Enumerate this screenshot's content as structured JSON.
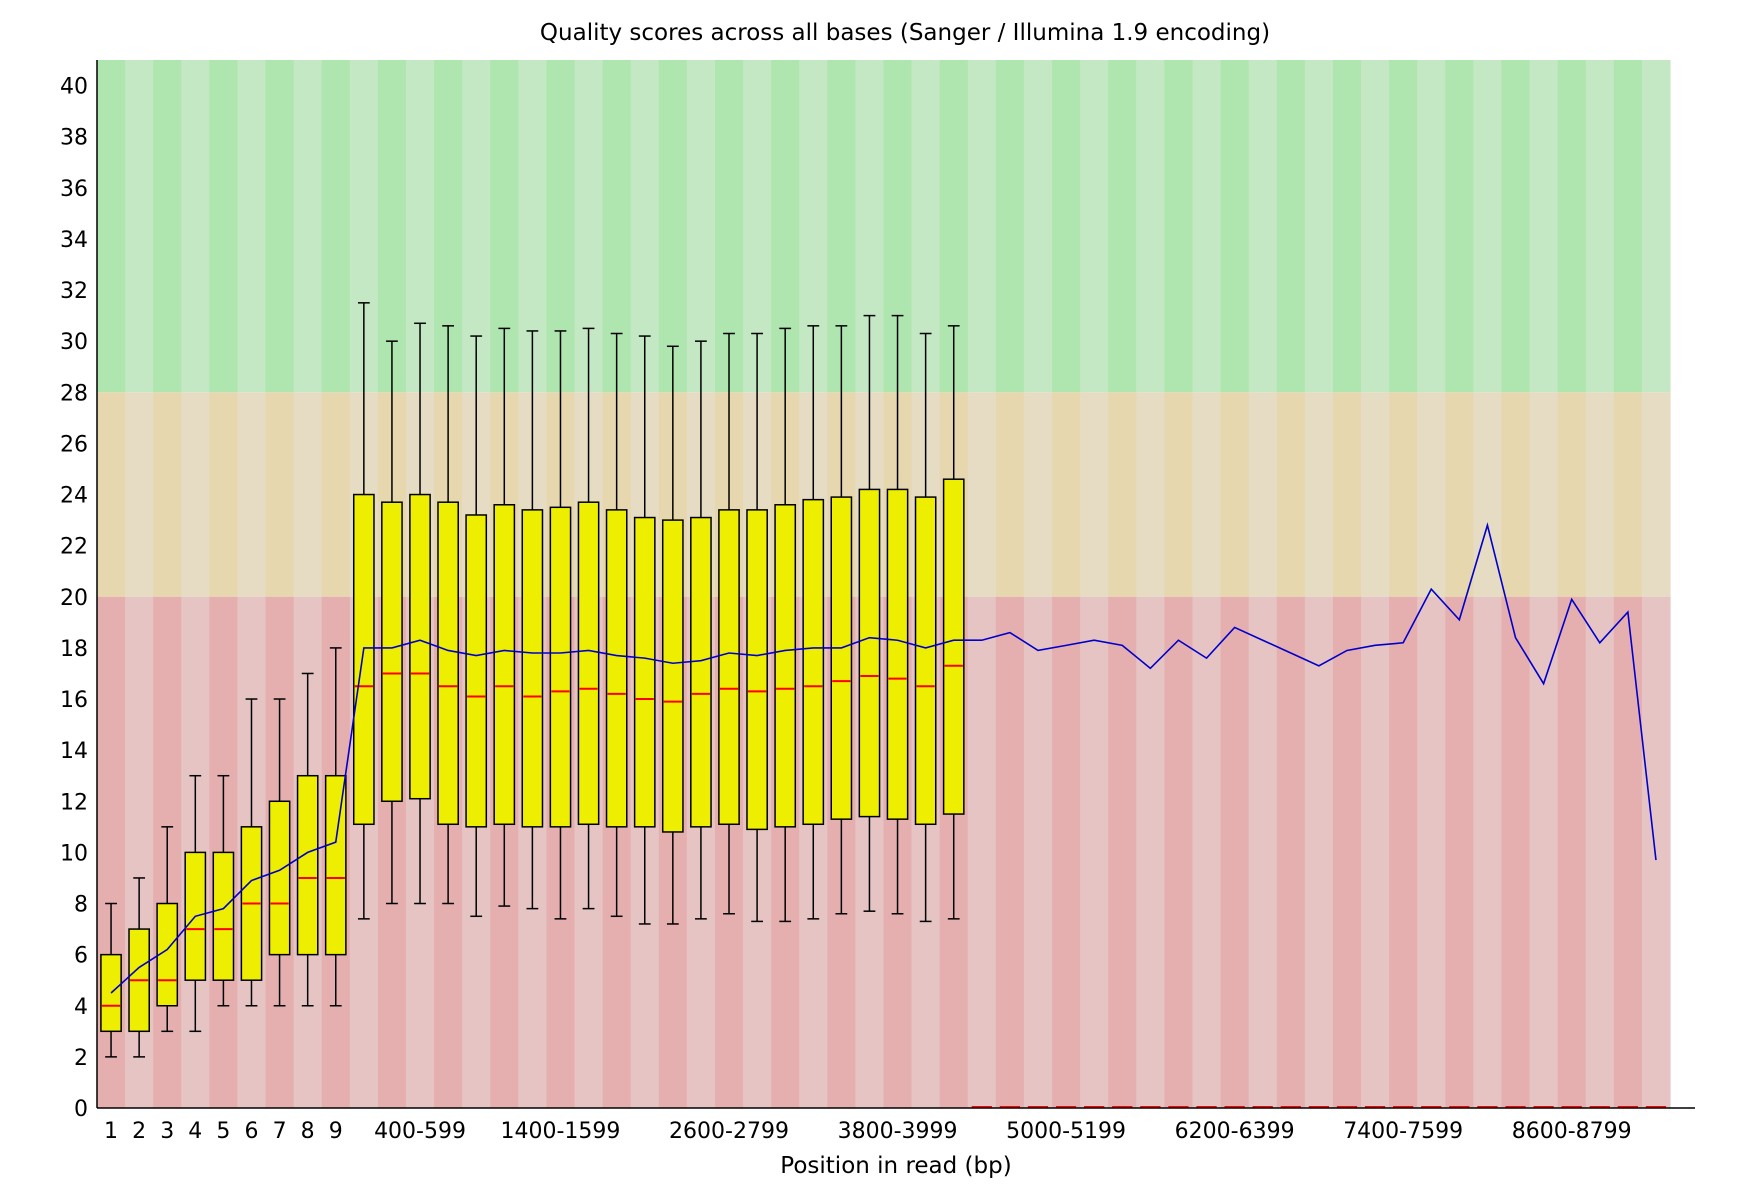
{
  "chart_data": {
    "type": "box",
    "title": "Quality scores across all bases (Sanger / Illumina 1.9 encoding)",
    "xlabel": "Position in read (bp)",
    "ylabel": "",
    "ylim": [
      0,
      41
    ],
    "y_ticks": [
      0,
      2,
      4,
      6,
      8,
      10,
      12,
      14,
      16,
      18,
      20,
      22,
      24,
      26,
      28,
      30,
      32,
      34,
      36,
      38,
      40
    ],
    "x_tick_labels": [
      "1",
      "2",
      "3",
      "4",
      "5",
      "6",
      "7",
      "8",
      "9",
      "400-599",
      "1400-1599",
      "2600-2799",
      "3800-3999",
      "5000-5199",
      "6200-6399",
      "7400-7599",
      "8600-8799"
    ],
    "x_tick_positions": [
      1,
      2,
      3,
      4,
      5,
      6,
      7,
      8,
      9,
      12,
      17,
      23,
      29,
      35,
      41,
      47,
      53
    ],
    "quality_bands": [
      {
        "from": 28,
        "to": 41,
        "color": "#afe6af",
        "alt_color": "#c4e8c4"
      },
      {
        "from": 20,
        "to": 28,
        "color": "#e6d7af",
        "alt_color": "#e6dcc4"
      },
      {
        "from": 0,
        "to": 20,
        "color": "#e6afaf",
        "alt_color": "#e6c4c4"
      }
    ],
    "colors": {
      "box": "#eeee00",
      "median": "#ff0000",
      "mean": "#0000cc",
      "whisker": "#000000"
    },
    "boxes": [
      {
        "x": 1,
        "whisker_low": 2,
        "q1": 3,
        "median": 4,
        "q3": 6,
        "whisker_high": 8
      },
      {
        "x": 2,
        "whisker_low": 2,
        "q1": 3,
        "median": 5,
        "q3": 7,
        "whisker_high": 9
      },
      {
        "x": 3,
        "whisker_low": 3,
        "q1": 4,
        "median": 5,
        "q3": 8,
        "whisker_high": 11
      },
      {
        "x": 4,
        "whisker_low": 3,
        "q1": 5,
        "median": 7,
        "q3": 10,
        "whisker_high": 13
      },
      {
        "x": 5,
        "whisker_low": 4,
        "q1": 5,
        "median": 7,
        "q3": 10,
        "whisker_high": 13
      },
      {
        "x": 6,
        "whisker_low": 4,
        "q1": 5,
        "median": 8,
        "q3": 11,
        "whisker_high": 16
      },
      {
        "x": 7,
        "whisker_low": 4,
        "q1": 6,
        "median": 8,
        "q3": 12,
        "whisker_high": 16
      },
      {
        "x": 8,
        "whisker_low": 4,
        "q1": 6,
        "median": 9,
        "q3": 13,
        "whisker_high": 17
      },
      {
        "x": 9,
        "whisker_low": 4,
        "q1": 6,
        "median": 9,
        "q3": 13,
        "whisker_high": 18
      },
      {
        "x": 10,
        "whisker_low": 7.4,
        "q1": 11.1,
        "median": 16.5,
        "q3": 24,
        "whisker_high": 31.5
      },
      {
        "x": 11,
        "whisker_low": 8,
        "q1": 12,
        "median": 17,
        "q3": 23.7,
        "whisker_high": 30
      },
      {
        "x": 12,
        "whisker_low": 8,
        "q1": 12.1,
        "median": 17,
        "q3": 24,
        "whisker_high": 30.7
      },
      {
        "x": 13,
        "whisker_low": 8,
        "q1": 11.1,
        "median": 16.5,
        "q3": 23.7,
        "whisker_high": 30.6
      },
      {
        "x": 14,
        "whisker_low": 7.5,
        "q1": 11,
        "median": 16.1,
        "q3": 23.2,
        "whisker_high": 30.2
      },
      {
        "x": 15,
        "whisker_low": 7.9,
        "q1": 11.1,
        "median": 16.5,
        "q3": 23.6,
        "whisker_high": 30.5
      },
      {
        "x": 16,
        "whisker_low": 7.8,
        "q1": 11,
        "median": 16.1,
        "q3": 23.4,
        "whisker_high": 30.4
      },
      {
        "x": 17,
        "whisker_low": 7.4,
        "q1": 11,
        "median": 16.3,
        "q3": 23.5,
        "whisker_high": 30.4
      },
      {
        "x": 18,
        "whisker_low": 7.8,
        "q1": 11.1,
        "median": 16.4,
        "q3": 23.7,
        "whisker_high": 30.5
      },
      {
        "x": 19,
        "whisker_low": 7.5,
        "q1": 11,
        "median": 16.2,
        "q3": 23.4,
        "whisker_high": 30.3
      },
      {
        "x": 20,
        "whisker_low": 7.2,
        "q1": 11,
        "median": 16,
        "q3": 23.1,
        "whisker_high": 30.2
      },
      {
        "x": 21,
        "whisker_low": 7.2,
        "q1": 10.8,
        "median": 15.9,
        "q3": 23,
        "whisker_high": 29.8
      },
      {
        "x": 22,
        "whisker_low": 7.4,
        "q1": 11,
        "median": 16.2,
        "q3": 23.1,
        "whisker_high": 30
      },
      {
        "x": 23,
        "whisker_low": 7.6,
        "q1": 11.1,
        "median": 16.4,
        "q3": 23.4,
        "whisker_high": 30.3
      },
      {
        "x": 24,
        "whisker_low": 7.3,
        "q1": 10.9,
        "median": 16.3,
        "q3": 23.4,
        "whisker_high": 30.3
      },
      {
        "x": 25,
        "whisker_low": 7.3,
        "q1": 11,
        "median": 16.4,
        "q3": 23.6,
        "whisker_high": 30.5
      },
      {
        "x": 26,
        "whisker_low": 7.4,
        "q1": 11.1,
        "median": 16.5,
        "q3": 23.8,
        "whisker_high": 30.6
      },
      {
        "x": 27,
        "whisker_low": 7.6,
        "q1": 11.3,
        "median": 16.7,
        "q3": 23.9,
        "whisker_high": 30.6
      },
      {
        "x": 28,
        "whisker_low": 7.7,
        "q1": 11.4,
        "median": 16.9,
        "q3": 24.2,
        "whisker_high": 31
      },
      {
        "x": 29,
        "whisker_low": 7.6,
        "q1": 11.3,
        "median": 16.8,
        "q3": 24.2,
        "whisker_high": 31
      },
      {
        "x": 30,
        "whisker_low": 7.3,
        "q1": 11.1,
        "median": 16.5,
        "q3": 23.9,
        "whisker_high": 30.3
      },
      {
        "x": 31,
        "whisker_low": 7.4,
        "q1": 11.5,
        "median": 17.3,
        "q3": 24.6,
        "whisker_high": 30.6
      }
    ],
    "empty_median_positions_from": 32,
    "mean_line": [
      [
        1,
        4.5
      ],
      [
        2,
        5.5
      ],
      [
        3,
        6.2
      ],
      [
        4,
        7.5
      ],
      [
        5,
        7.8
      ],
      [
        6,
        8.9
      ],
      [
        7,
        9.3
      ],
      [
        8,
        10
      ],
      [
        9,
        10.4
      ],
      [
        10,
        18
      ],
      [
        11,
        18
      ],
      [
        12,
        18.3
      ],
      [
        13,
        17.9
      ],
      [
        14,
        17.7
      ],
      [
        15,
        17.9
      ],
      [
        16,
        17.8
      ],
      [
        17,
        17.8
      ],
      [
        18,
        17.9
      ],
      [
        19,
        17.7
      ],
      [
        20,
        17.6
      ],
      [
        21,
        17.4
      ],
      [
        22,
        17.5
      ],
      [
        23,
        17.8
      ],
      [
        24,
        17.7
      ],
      [
        25,
        17.9
      ],
      [
        26,
        18
      ],
      [
        27,
        18
      ],
      [
        28,
        18.4
      ],
      [
        29,
        18.3
      ],
      [
        30,
        18
      ],
      [
        31,
        18.3
      ],
      [
        32,
        18.3
      ],
      [
        33,
        18.6
      ],
      [
        34,
        17.9
      ],
      [
        35,
        18.1
      ],
      [
        36,
        18.3
      ],
      [
        37,
        18.1
      ],
      [
        38,
        17.2
      ],
      [
        39,
        18.3
      ],
      [
        40,
        17.6
      ],
      [
        41,
        18.8
      ],
      [
        42,
        18.3
      ],
      [
        43,
        17.8
      ],
      [
        44,
        17.3
      ],
      [
        45,
        17.9
      ],
      [
        46,
        18.1
      ],
      [
        47,
        18.2
      ],
      [
        48,
        20.3
      ],
      [
        49,
        19.1
      ],
      [
        50,
        22.8
      ],
      [
        51,
        18.4
      ],
      [
        52,
        16.6
      ],
      [
        53,
        19.9
      ],
      [
        54,
        18.2
      ],
      [
        55,
        19.4
      ],
      [
        56,
        9.7
      ]
    ]
  }
}
